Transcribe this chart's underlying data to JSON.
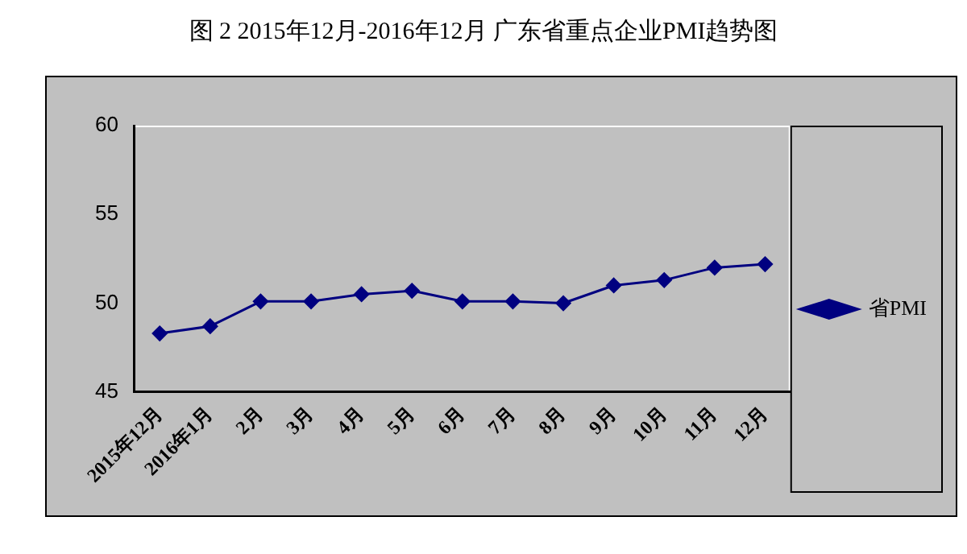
{
  "chart_data": {
    "type": "line",
    "title": "图 2  2015年12月-2016年12月  广东省重点企业PMI趋势图",
    "categories": [
      "2015年12月",
      "2016年1月",
      "2月",
      "3月",
      "4月",
      "5月",
      "6月",
      "7月",
      "8月",
      "9月",
      "10月",
      "11月",
      "12月"
    ],
    "series": [
      {
        "name": "省PMI",
        "color": "#000080",
        "values": [
          48.3,
          48.7,
          50.1,
          50.1,
          50.5,
          50.7,
          50.1,
          50.1,
          50.0,
          51.0,
          51.3,
          52.0,
          52.2
        ]
      }
    ],
    "ylim": [
      45,
      60
    ],
    "yticks": [
      45,
      50,
      55,
      60
    ],
    "grid": false,
    "legend": "right",
    "marker": "diamond",
    "line_style": "solid"
  }
}
